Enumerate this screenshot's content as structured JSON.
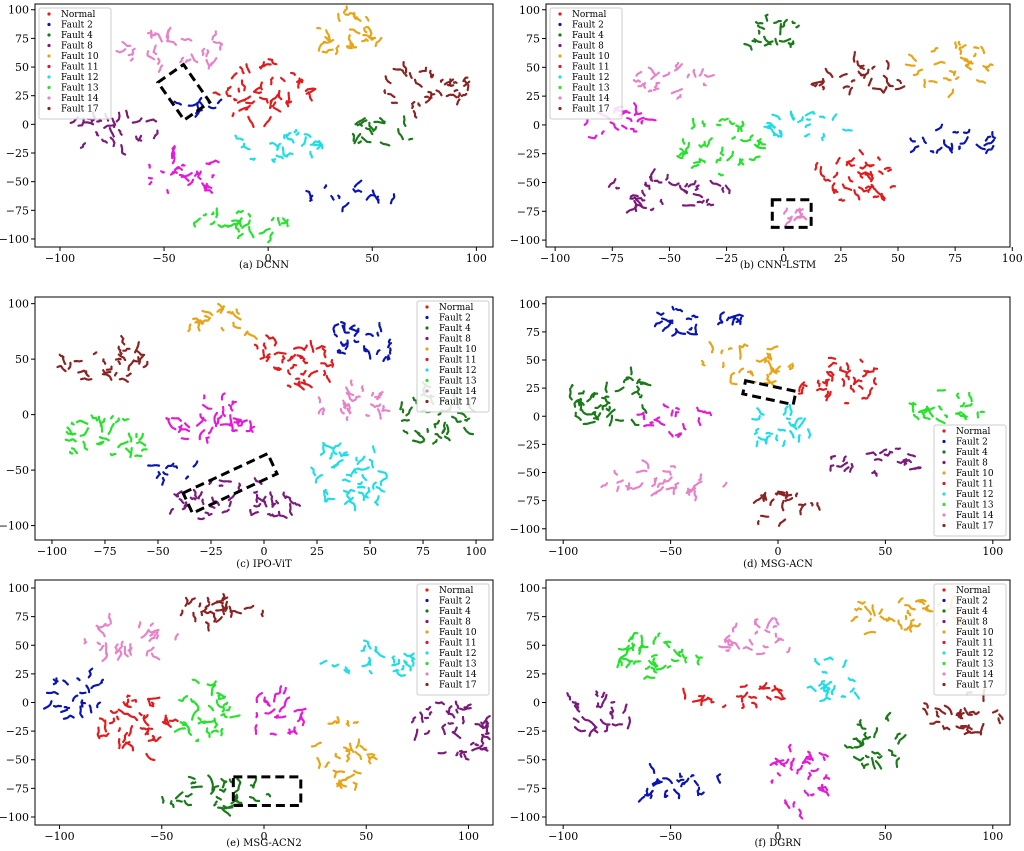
{
  "figure": {
    "class_colors": {
      "Normal": "#e41a1c",
      "Fault 2": "#0a14b4",
      "Fault 4": "#1a7a1a",
      "Fault 8": "#7b1a7b",
      "Fault 10": "#e8a416",
      "Fault 11": "#e3142d",
      "Fault 12": "#1ddde6",
      "Fault 13": "#25e22b",
      "Fault 14": "#e882c8",
      "Fault 17": "#8b2323",
      "magenta": "#e31ad6"
    }
  },
  "chart_data": [
    {
      "type": "scatter",
      "caption": "(a) DCNN",
      "legend_pos": "top-left",
      "legend": [
        "Normal",
        "Fault 2",
        "Fault 4",
        "Fault 8",
        "Fault 10",
        "Fault 11",
        "Fault 12",
        "Fault 13",
        "Fault 14",
        "Fault 17"
      ],
      "xlim": [
        -112,
        108
      ],
      "ylim": [
        -107,
        105
      ],
      "xticks": [
        -100,
        -50,
        0,
        50,
        100
      ],
      "yticks": [
        100,
        75,
        50,
        25,
        0,
        -25,
        -50,
        -75,
        -100
      ],
      "clusters": [
        {
          "color": "Fault 14",
          "cx": -43,
          "cy": 65,
          "rx": 26,
          "ry": 16
        },
        {
          "color": "Fault 10",
          "cx": 40,
          "cy": 78,
          "rx": 18,
          "ry": 20
        },
        {
          "color": "Normal",
          "cx": -3,
          "cy": 30,
          "rx": 23,
          "ry": 26
        },
        {
          "color": "Fault 17",
          "cx": 75,
          "cy": 30,
          "rx": 23,
          "ry": 22
        },
        {
          "color": "Fault 4",
          "cx": 53,
          "cy": -8,
          "rx": 18,
          "ry": 14
        },
        {
          "color": "Fault 12",
          "cx": 7,
          "cy": -18,
          "rx": 21,
          "ry": 17
        },
        {
          "color": "magenta",
          "cx": -43,
          "cy": -43,
          "rx": 21,
          "ry": 17
        },
        {
          "color": "Fault 8",
          "cx": -75,
          "cy": -5,
          "rx": 25,
          "ry": 14
        },
        {
          "color": "Fault 2",
          "cx": 40,
          "cy": -62,
          "rx": 22,
          "ry": 9
        },
        {
          "color": "Fault 13",
          "cx": -12,
          "cy": -85,
          "rx": 22,
          "ry": 15
        },
        {
          "color": "Fault 2",
          "cx": -33,
          "cy": 15,
          "rx": 10,
          "ry": 10
        }
      ],
      "highlight_box": {
        "x": -48,
        "y": 48,
        "w": 15,
        "h": 40,
        "angle": 35
      }
    },
    {
      "type": "scatter",
      "caption": "(b) CNN-LSTM",
      "legend_pos": "top-left",
      "legend": [
        "Normal",
        "Fault 2",
        "Fault 4",
        "Fault 8",
        "Fault 10",
        "Fault 11",
        "Fault 12",
        "Fault 13",
        "Fault 14",
        "Fault 17"
      ],
      "xlim": [
        -104,
        99
      ],
      "ylim": [
        -106,
        105
      ],
      "xticks": [
        -100,
        -75,
        -50,
        -25,
        0,
        25,
        50,
        75,
        100
      ],
      "yticks": [
        100,
        75,
        50,
        25,
        0,
        -25,
        -50,
        -75,
        -100
      ],
      "clusters": [
        {
          "color": "Fault 4",
          "cx": -8,
          "cy": 80,
          "rx": 20,
          "ry": 12
        },
        {
          "color": "Fault 10",
          "cx": 75,
          "cy": 50,
          "rx": 18,
          "ry": 20
        },
        {
          "color": "Fault 17",
          "cx": 33,
          "cy": 40,
          "rx": 20,
          "ry": 16
        },
        {
          "color": "Fault 14",
          "cx": -50,
          "cy": 40,
          "rx": 16,
          "ry": 16
        },
        {
          "color": "magenta",
          "cx": -72,
          "cy": 0,
          "rx": 16,
          "ry": 14
        },
        {
          "color": "Fault 13",
          "cx": -28,
          "cy": -20,
          "rx": 18,
          "ry": 24
        },
        {
          "color": "Fault 12",
          "cx": 10,
          "cy": 0,
          "rx": 20,
          "ry": 13
        },
        {
          "color": "Fault 2",
          "cx": 75,
          "cy": -15,
          "rx": 20,
          "ry": 12
        },
        {
          "color": "Normal",
          "cx": 30,
          "cy": -45,
          "rx": 20,
          "ry": 22
        },
        {
          "color": "Fault 8",
          "cx": -52,
          "cy": -60,
          "rx": 30,
          "ry": 14
        },
        {
          "color": "Fault 14",
          "cx": 5,
          "cy": -78,
          "rx": 5,
          "ry": 7
        }
      ],
      "highlight_box": {
        "x": -5,
        "y": -65,
        "w": 17,
        "h": 24,
        "angle": 0
      }
    },
    {
      "type": "scatter",
      "caption": "(c) IPO-ViT",
      "legend_pos": "top-right",
      "legend": [
        "Normal",
        "Fault 2",
        "Fault 4",
        "Fault 8",
        "Fault 10",
        "Fault 11",
        "Fault 12",
        "Fault 13",
        "Fault 14",
        "Fault 17"
      ],
      "xlim": [
        -108,
        108
      ],
      "ylim": [
        -113,
        106
      ],
      "xticks": [
        -100,
        -75,
        -50,
        -25,
        0,
        25,
        50,
        75,
        100
      ],
      "yticks": [
        100,
        50,
        0,
        -50,
        -100
      ],
      "clusters": [
        {
          "color": "Fault 10",
          "cx": -20,
          "cy": 82,
          "rx": 18,
          "ry": 14
        },
        {
          "color": "Normal",
          "cx": 13,
          "cy": 50,
          "rx": 22,
          "ry": 24
        },
        {
          "color": "Fault 2",
          "cx": 45,
          "cy": 60,
          "rx": 18,
          "ry": 20
        },
        {
          "color": "Fault 17",
          "cx": -75,
          "cy": 48,
          "rx": 24,
          "ry": 18
        },
        {
          "color": "Fault 14",
          "cx": 44,
          "cy": 10,
          "rx": 20,
          "ry": 18
        },
        {
          "color": "magenta",
          "cx": -25,
          "cy": -5,
          "rx": 20,
          "ry": 24
        },
        {
          "color": "Fault 13",
          "cx": -75,
          "cy": -22,
          "rx": 22,
          "ry": 20
        },
        {
          "color": "Fault 4",
          "cx": 82,
          "cy": 0,
          "rx": 18,
          "ry": 28
        },
        {
          "color": "Fault 12",
          "cx": 40,
          "cy": -55,
          "rx": 20,
          "ry": 28
        },
        {
          "color": "Fault 8",
          "cx": -15,
          "cy": -80,
          "rx": 30,
          "ry": 20
        },
        {
          "color": "Fault 2",
          "cx": -42,
          "cy": -50,
          "rx": 10,
          "ry": 9
        }
      ],
      "highlight_box": {
        "x": -38,
        "y": -52,
        "w": 44,
        "h": 20,
        "angle": 25
      }
    },
    {
      "type": "scatter",
      "caption": "(d) MSG-ACN",
      "legend_pos": "bottom-right",
      "legend": [
        "Normal",
        "Fault 2",
        "Fault 4",
        "Fault 8",
        "Fault 10",
        "Fault 11",
        "Fault 12",
        "Fault 13",
        "Fault 14",
        "Fault 17"
      ],
      "xlim": [
        -108,
        108
      ],
      "ylim": [
        -110,
        106
      ],
      "xticks": [
        -100,
        -50,
        0,
        50,
        100
      ],
      "yticks": [
        100,
        75,
        50,
        25,
        0,
        -25,
        -50,
        -75,
        -100
      ],
      "clusters": [
        {
          "color": "Fault 2",
          "cx": -40,
          "cy": 82,
          "rx": 24,
          "ry": 14
        },
        {
          "color": "Fault 10",
          "cx": -15,
          "cy": 45,
          "rx": 22,
          "ry": 18
        },
        {
          "color": "Normal",
          "cx": 28,
          "cy": 32,
          "rx": 20,
          "ry": 22
        },
        {
          "color": "Fault 4",
          "cx": -78,
          "cy": 15,
          "rx": 22,
          "ry": 25
        },
        {
          "color": "Fault 13",
          "cx": 78,
          "cy": 10,
          "rx": 20,
          "ry": 16
        },
        {
          "color": "magenta",
          "cx": -48,
          "cy": -2,
          "rx": 16,
          "ry": 16
        },
        {
          "color": "Fault 12",
          "cx": 2,
          "cy": -12,
          "rx": 17,
          "ry": 17
        },
        {
          "color": "Fault 8",
          "cx": 45,
          "cy": -40,
          "rx": 22,
          "ry": 14
        },
        {
          "color": "Fault 14",
          "cx": -50,
          "cy": -58,
          "rx": 30,
          "ry": 13
        },
        {
          "color": "Fault 17",
          "cx": 2,
          "cy": -82,
          "rx": 18,
          "ry": 15
        }
      ],
      "highlight_box": {
        "x": -16,
        "y": 27,
        "w": 24,
        "h": 12,
        "angle": -12
      }
    },
    {
      "type": "scatter",
      "caption": "(e) MSG-ACN2",
      "legend_pos": "top-right",
      "legend": [
        "Normal",
        "Fault 2",
        "Fault 4",
        "Fault 8",
        "Fault 10",
        "Fault 11",
        "Fault 12",
        "Fault 13",
        "Fault 14",
        "Fault 17"
      ],
      "xlim": [
        -112,
        112
      ],
      "ylim": [
        -107,
        107
      ],
      "xticks": [
        -100,
        -50,
        0,
        50,
        100
      ],
      "yticks": [
        100,
        75,
        50,
        25,
        0,
        -25,
        -50,
        -75,
        -100
      ],
      "clusters": [
        {
          "color": "Fault 17",
          "cx": -20,
          "cy": 80,
          "rx": 22,
          "ry": 15
        },
        {
          "color": "Fault 14",
          "cx": -65,
          "cy": 55,
          "rx": 24,
          "ry": 16
        },
        {
          "color": "Fault 12",
          "cx": 52,
          "cy": 35,
          "rx": 22,
          "ry": 14
        },
        {
          "color": "Fault 2",
          "cx": -92,
          "cy": 8,
          "rx": 14,
          "ry": 22
        },
        {
          "color": "Normal",
          "cx": -62,
          "cy": -20,
          "rx": 20,
          "ry": 28
        },
        {
          "color": "Fault 13",
          "cx": -30,
          "cy": -5,
          "rx": 15,
          "ry": 30
        },
        {
          "color": "magenta",
          "cx": 10,
          "cy": -10,
          "rx": 16,
          "ry": 20
        },
        {
          "color": "Fault 10",
          "cx": 40,
          "cy": -45,
          "rx": 14,
          "ry": 30
        },
        {
          "color": "Fault 8",
          "cx": 92,
          "cy": -25,
          "rx": 20,
          "ry": 28
        },
        {
          "color": "Fault 4",
          "cx": -30,
          "cy": -80,
          "rx": 35,
          "ry": 14
        }
      ],
      "highlight_box": {
        "x": -15,
        "y": -65,
        "w": 33,
        "h": 25,
        "angle": 0
      }
    },
    {
      "type": "scatter",
      "caption": "(f) DGRN",
      "legend_pos": "top-right",
      "legend": [
        "Normal",
        "Fault 2",
        "Fault 4",
        "Fault 8",
        "Fault 10",
        "Fault 11",
        "Fault 12",
        "Fault 13",
        "Fault 14",
        "Fault 17"
      ],
      "xlim": [
        -108,
        108
      ],
      "ylim": [
        -107,
        107
      ],
      "xticks": [
        -100,
        -50,
        0,
        50,
        100
      ],
      "yticks": [
        100,
        75,
        50,
        25,
        0,
        -25,
        -50,
        -75,
        -100
      ],
      "clusters": [
        {
          "color": "Fault 10",
          "cx": 57,
          "cy": 75,
          "rx": 30,
          "ry": 16
        },
        {
          "color": "Fault 14",
          "cx": -10,
          "cy": 55,
          "rx": 20,
          "ry": 16
        },
        {
          "color": "Fault 13",
          "cx": -58,
          "cy": 40,
          "rx": 22,
          "ry": 22
        },
        {
          "color": "Fault 12",
          "cx": 25,
          "cy": 18,
          "rx": 13,
          "ry": 20
        },
        {
          "color": "Normal",
          "cx": -18,
          "cy": 5,
          "rx": 28,
          "ry": 10
        },
        {
          "color": "Fault 17",
          "cx": 85,
          "cy": -10,
          "rx": 20,
          "ry": 18
        },
        {
          "color": "Fault 8",
          "cx": -85,
          "cy": -10,
          "rx": 18,
          "ry": 18
        },
        {
          "color": "Fault 4",
          "cx": 45,
          "cy": -35,
          "rx": 14,
          "ry": 25
        },
        {
          "color": "magenta",
          "cx": 10,
          "cy": -65,
          "rx": 14,
          "ry": 30
        },
        {
          "color": "Fault 2",
          "cx": -50,
          "cy": -72,
          "rx": 25,
          "ry": 12
        }
      ],
      "highlight_box": null
    }
  ]
}
